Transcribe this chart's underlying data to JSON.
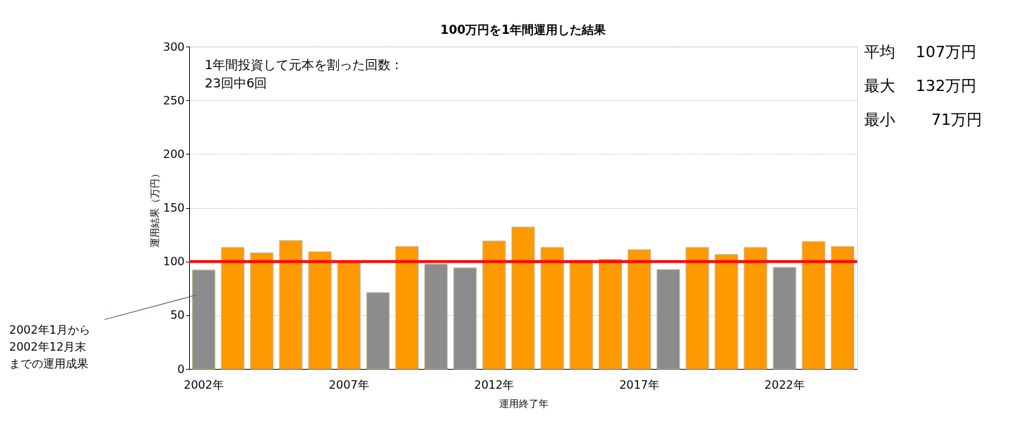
{
  "chart_data": {
    "type": "bar",
    "title": "100万円を1年間運用した結果",
    "xlabel": "運用終了年",
    "ylabel": "運用結果（万円）",
    "categories": [
      "2002年",
      null,
      null,
      null,
      null,
      "2007年",
      null,
      null,
      null,
      null,
      "2012年",
      null,
      null,
      null,
      null,
      "2017年",
      null,
      null,
      null,
      null,
      "2022年",
      null,
      null
    ],
    "values": [
      92,
      113,
      108,
      119.5,
      109,
      100,
      71,
      114,
      97.5,
      94,
      119,
      132,
      113,
      101,
      102,
      111,
      92.5,
      113,
      106.5,
      113,
      94.5,
      118.5,
      114
    ],
    "colors": [
      "#8c8c8c",
      "#ff9900",
      "#ff9900",
      "#ff9900",
      "#ff9900",
      "#ff9900",
      "#8c8c8c",
      "#ff9900",
      "#8c8c8c",
      "#8c8c8c",
      "#ff9900",
      "#ff9900",
      "#ff9900",
      "#ff9900",
      "#ff9900",
      "#ff9900",
      "#8c8c8c",
      "#ff9900",
      "#ff9900",
      "#ff9900",
      "#8c8c8c",
      "#ff9900",
      "#ff9900"
    ],
    "ylim": [
      0,
      300
    ],
    "yticks": [
      0,
      50,
      100,
      150,
      200,
      250,
      300
    ],
    "grid": "y",
    "ref_lines": [
      {
        "axis": "y",
        "value": 100,
        "color": "#ff0000"
      }
    ],
    "annotations": [
      "1年間投資して元本を割った回数：23回中6回",
      "2002年1月から2002年12月末までの運用成果",
      "平均　 107万円",
      "最大　 132万円",
      "最小　　 71万円"
    ]
  }
}
